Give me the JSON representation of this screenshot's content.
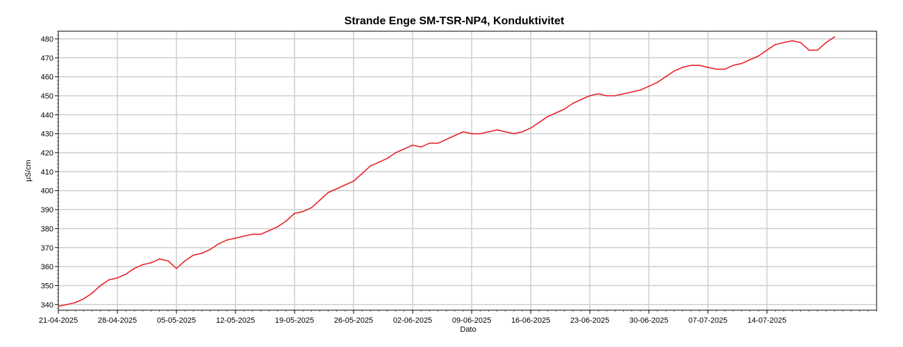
{
  "chart_data": {
    "type": "line",
    "title": "Strande Enge SM-TSR-NP4, Konduktivitet",
    "xlabel": "Dato",
    "ylabel": "µS/cm",
    "x_tick_labels": [
      "21-04-2025",
      "28-04-2025",
      "05-05-2025",
      "12-05-2025",
      "19-05-2025",
      "26-05-2025",
      "02-06-2025",
      "09-06-2025",
      "16-06-2025",
      "23-06-2025",
      "30-06-2025",
      "07-07-2025",
      "14-07-2025"
    ],
    "y_ticks": [
      340,
      350,
      360,
      370,
      380,
      390,
      400,
      410,
      420,
      430,
      440,
      450,
      460,
      470,
      480
    ],
    "xlim": [
      "2025-04-21",
      "2025-07-27"
    ],
    "ylim": [
      337,
      484
    ],
    "grid": true,
    "series_color": "#e8232a",
    "series": [
      {
        "x": [
          "2025-04-21",
          "2025-04-23",
          "2025-04-24",
          "2025-04-25",
          "2025-04-26",
          "2025-04-27",
          "2025-04-28",
          "2025-04-29",
          "2025-04-30",
          "2025-05-01",
          "2025-05-02",
          "2025-05-03",
          "2025-05-04",
          "2025-05-05",
          "2025-05-06",
          "2025-05-07",
          "2025-05-08",
          "2025-05-09",
          "2025-05-10",
          "2025-05-11",
          "2025-05-12",
          "2025-05-13",
          "2025-05-14",
          "2025-05-15",
          "2025-05-16",
          "2025-05-17",
          "2025-05-18",
          "2025-05-19",
          "2025-05-20",
          "2025-05-21",
          "2025-05-22",
          "2025-05-23",
          "2025-05-24",
          "2025-05-25",
          "2025-05-26",
          "2025-05-27",
          "2025-05-28",
          "2025-05-29",
          "2025-05-30",
          "2025-05-31",
          "2025-06-01",
          "2025-06-02",
          "2025-06-03",
          "2025-06-04",
          "2025-06-05",
          "2025-06-06",
          "2025-06-07",
          "2025-06-08",
          "2025-06-09",
          "2025-06-10",
          "2025-06-11",
          "2025-06-12",
          "2025-06-13",
          "2025-06-14",
          "2025-06-15",
          "2025-06-16",
          "2025-06-17",
          "2025-06-18",
          "2025-06-19",
          "2025-06-20",
          "2025-06-21",
          "2025-06-22",
          "2025-06-23",
          "2025-06-24",
          "2025-06-25",
          "2025-06-26",
          "2025-06-27",
          "2025-06-28",
          "2025-06-29",
          "2025-06-30",
          "2025-07-01",
          "2025-07-02",
          "2025-07-03",
          "2025-07-04",
          "2025-07-05",
          "2025-07-06",
          "2025-07-07",
          "2025-07-08",
          "2025-07-09",
          "2025-07-10",
          "2025-07-11",
          "2025-07-12",
          "2025-07-13",
          "2025-07-14",
          "2025-07-15",
          "2025-07-16",
          "2025-07-17",
          "2025-07-18",
          "2025-07-19",
          "2025-07-20",
          "2025-07-21",
          "2025-07-22"
        ],
        "y": [
          339,
          341,
          343,
          346,
          350,
          353,
          354,
          356,
          359,
          361,
          362,
          364,
          363,
          359,
          363,
          366,
          367,
          369,
          372,
          374,
          375,
          376,
          377,
          377,
          379,
          381,
          384,
          388,
          389,
          391,
          395,
          399,
          401,
          403,
          405,
          409,
          413,
          415,
          417,
          420,
          422,
          424,
          423,
          425,
          425,
          427,
          429,
          431,
          430,
          430,
          431,
          432,
          431,
          430,
          431,
          433,
          436,
          439,
          441,
          443,
          446,
          448,
          450,
          451,
          450,
          450,
          451,
          452,
          453,
          455,
          457,
          460,
          463,
          465,
          466,
          466,
          465,
          464,
          464,
          466,
          467,
          469,
          471,
          474,
          477,
          478,
          479,
          478,
          474,
          474,
          478,
          481
        ]
      }
    ]
  }
}
